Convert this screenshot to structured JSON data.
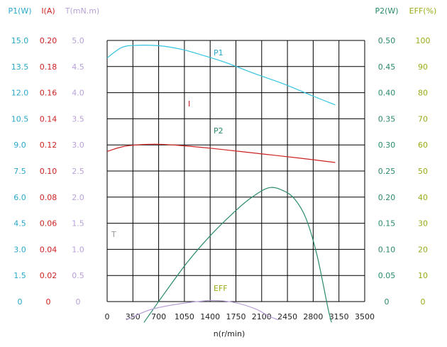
{
  "chart_data": {
    "type": "line",
    "title": "",
    "xlabel": "n(r/min)",
    "x_ticks": [
      "0",
      "350",
      "700",
      "1050",
      "1400",
      "1750",
      "2100",
      "2450",
      "2800",
      "3150",
      "3500"
    ],
    "xlim": [
      0,
      3500
    ],
    "grid": true,
    "left_axes": [
      {
        "header": "P1(W)",
        "color": "#2aa8c8",
        "ticks": [
          "0",
          "1.5",
          "3.0",
          "4.5",
          "6.0",
          "7.5",
          "9.0",
          "10.5",
          "12.0",
          "13.5",
          "15.0"
        ]
      },
      {
        "header": "I(A)",
        "color": "#cc2222",
        "ticks": [
          "0",
          "0.02",
          "0.04",
          "0.06",
          "0.08",
          "0.10",
          "0.12",
          "0.14",
          "0.16",
          "0.18",
          "0.20"
        ]
      },
      {
        "header": "T(mN.m)",
        "color": "#b8a0d8",
        "ticks": [
          "0",
          "0.5",
          "1.0",
          "1.5",
          "2.0",
          "2.5",
          "3.0",
          "3.5",
          "4.0",
          "4.5",
          "5.0"
        ]
      }
    ],
    "right_axes": [
      {
        "header": "P2(W)",
        "color": "#2a8a6a",
        "ticks": [
          "0",
          "0.05",
          "0.10",
          "0.15",
          "0.20",
          "0.25",
          "0.30",
          "0.35",
          "0.40",
          "0.45",
          "0.50"
        ]
      },
      {
        "header": "EFF(%)",
        "color": "#9aaa18",
        "ticks": [
          "0",
          "10",
          "20",
          "30",
          "40",
          "50",
          "60",
          "70",
          "80",
          "90",
          "100"
        ]
      }
    ],
    "ylim_fraction": [
      0,
      1
    ],
    "series": [
      {
        "name": "P1",
        "color": "#33c4e0",
        "unit_axis": "P1(W)",
        "x": [
          0,
          200,
          400,
          700,
          1000,
          1300,
          1600,
          2000,
          2400,
          2800,
          3100
        ],
        "y": [
          14.0,
          14.6,
          14.72,
          14.7,
          14.5,
          14.15,
          13.75,
          13.1,
          12.5,
          11.8,
          11.3
        ]
      },
      {
        "name": "I",
        "color": "#cc2222",
        "unit_axis": "I(A)",
        "x": [
          0,
          200,
          400,
          700,
          1000,
          1400,
          1800,
          2200,
          2600,
          3100
        ],
        "y": [
          0.115,
          0.1185,
          0.12,
          0.1205,
          0.1195,
          0.1175,
          0.115,
          0.1125,
          0.11,
          0.1065
        ]
      },
      {
        "name": "P2",
        "color": "#2a8a6a",
        "unit_axis": "P2(W)",
        "x": [
          500,
          800,
          1100,
          1400,
          1700,
          1950,
          2200,
          2400,
          2550,
          2700,
          2850,
          3000,
          3050
        ],
        "y": [
          -0.04,
          0.02,
          0.077,
          0.126,
          0.168,
          0.198,
          0.218,
          0.212,
          0.196,
          0.16,
          0.09,
          -0.012,
          -0.04
        ]
      },
      {
        "name": "EFF",
        "color": "#b8a0d8",
        "unit_axis": "T(mN.m)",
        "x": [
          260,
          600,
          1000,
          1400,
          1700,
          2000,
          2200,
          2330
        ],
        "y": [
          -0.35,
          -0.15,
          -0.04,
          0.02,
          -0.01,
          -0.13,
          -0.28,
          -0.35
        ]
      }
    ],
    "annotations": [
      "P1",
      "I",
      "P2",
      "T",
      "EFF"
    ]
  }
}
